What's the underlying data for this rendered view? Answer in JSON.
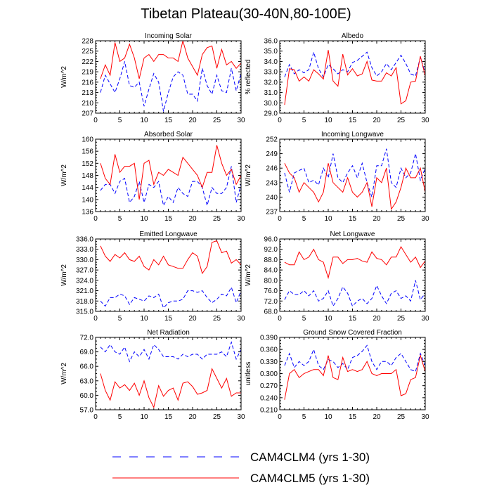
{
  "figure": {
    "title": "Tibetan Plateau(30-40N,80-100E)",
    "legend": [
      {
        "name": "CAM4CLM4 (yrs 1-30)",
        "color": "#0000ff",
        "style": "dashed"
      },
      {
        "name": "CAM4CLM5 (yrs 1-30)",
        "color": "#ff0000",
        "style": "solid"
      }
    ]
  },
  "chart_data": [
    {
      "type": "line",
      "title": "Incoming Solar",
      "ylabel": "W/m^2",
      "xlim": [
        0,
        30
      ],
      "xticks": [
        "0",
        "5",
        "10",
        "15",
        "20",
        "25",
        "30"
      ],
      "ylim": [
        207,
        228
      ],
      "yticks": [
        "207",
        "210",
        "213",
        "216",
        "219",
        "222",
        "225",
        "228"
      ],
      "x": [
        1,
        2,
        3,
        4,
        5,
        6,
        7,
        8,
        9,
        10,
        11,
        12,
        13,
        14,
        15,
        16,
        17,
        18,
        19,
        20,
        21,
        22,
        23,
        24,
        25,
        26,
        27,
        28,
        29,
        30
      ],
      "series": [
        {
          "name": "CAM4CLM4 (yrs 1-30)",
          "values": [
            213,
            218,
            215.5,
            213,
            217,
            222,
            215,
            214.5,
            216,
            209,
            214,
            218.5,
            216,
            207.5,
            213,
            217.5,
            219,
            218,
            212.5,
            212.5,
            210.5,
            220,
            215,
            212.5,
            218,
            213.5,
            213,
            220,
            213.5,
            218.5
          ]
        },
        {
          "name": "CAM4CLM5 (yrs 1-30)",
          "values": [
            217,
            221,
            218,
            227.5,
            222,
            223,
            227,
            223,
            217,
            223,
            224,
            222,
            224,
            224,
            223,
            223,
            222,
            228,
            223,
            220.5,
            218,
            224,
            226,
            226.5,
            220,
            225.5,
            221,
            222,
            220,
            221.5
          ]
        }
      ]
    },
    {
      "type": "line",
      "title": "Albedo",
      "ylabel": "% reflected",
      "xlim": [
        0,
        30
      ],
      "xticks": [
        "0",
        "5",
        "10",
        "15",
        "20",
        "25",
        "30"
      ],
      "ylim": [
        29.0,
        36.0
      ],
      "yticks": [
        "29.0",
        "30.0",
        "31.0",
        "32.0",
        "33.0",
        "34.0",
        "35.0",
        "36.0"
      ],
      "x": [
        1,
        2,
        3,
        4,
        5,
        6,
        7,
        8,
        9,
        10,
        11,
        12,
        13,
        14,
        15,
        16,
        17,
        18,
        19,
        20,
        21,
        22,
        23,
        24,
        25,
        26,
        27,
        28,
        29,
        30
      ],
      "series": [
        {
          "name": "CAM4CLM4 (yrs 1-30)",
          "values": [
            32.5,
            33.7,
            32.8,
            33.2,
            32.9,
            33.2,
            34.9,
            33.3,
            32.5,
            33.7,
            33.3,
            32.8,
            33.2,
            33.0,
            33.9,
            34.1,
            34.5,
            34.9,
            33.4,
            32.6,
            33.0,
            33.8,
            33.2,
            33.9,
            34.6,
            33.8,
            32.8,
            32.6,
            34.4,
            32.9
          ]
        },
        {
          "name": "CAM4CLM5 (yrs 1-30)",
          "values": [
            29.8,
            33.3,
            33.2,
            32.1,
            32.5,
            32.1,
            33.2,
            32.8,
            32.3,
            35.1,
            32.1,
            31.6,
            34.7,
            32.7,
            33.3,
            32.6,
            32.8,
            34.0,
            32.2,
            32.1,
            32.1,
            32.9,
            32.6,
            33.4,
            29.9,
            30.2,
            32.0,
            32.1,
            34.5,
            32.6
          ]
        }
      ]
    },
    {
      "type": "line",
      "title": "Absorbed Solar",
      "ylabel": "W/m^2",
      "xlim": [
        0,
        30
      ],
      "xticks": [
        "0",
        "5",
        "10",
        "15",
        "20",
        "25",
        "30"
      ],
      "ylim": [
        136,
        160
      ],
      "yticks": [
        "136",
        "140",
        "144",
        "148",
        "152",
        "156",
        "160"
      ],
      "x": [
        1,
        2,
        3,
        4,
        5,
        6,
        7,
        8,
        9,
        10,
        11,
        12,
        13,
        14,
        15,
        16,
        17,
        18,
        19,
        20,
        21,
        22,
        23,
        24,
        25,
        26,
        27,
        28,
        29,
        30
      ],
      "series": [
        {
          "name": "CAM4CLM4 (yrs 1-30)",
          "values": [
            143,
            145,
            145,
            142,
            146,
            147,
            139,
            141,
            146,
            139,
            145,
            144,
            146,
            138,
            141,
            139,
            144,
            142,
            141,
            146,
            146,
            144,
            138,
            144,
            142,
            142,
            144,
            151,
            139,
            145
          ]
        },
        {
          "name": "CAM4CLM5 (yrs 1-30)",
          "values": [
            152,
            147,
            145,
            155,
            149,
            151,
            151,
            152,
            140,
            152,
            153,
            145,
            149,
            148,
            150,
            149,
            148,
            154,
            152,
            150,
            148,
            144,
            149,
            149,
            158,
            152,
            148,
            150,
            145,
            148
          ]
        }
      ]
    },
    {
      "type": "line",
      "title": "Incoming Longwave",
      "ylabel": "W/m^2",
      "xlim": [
        0,
        30
      ],
      "xticks": [
        "0",
        "5",
        "10",
        "15",
        "20",
        "25",
        "30"
      ],
      "ylim": [
        237,
        252
      ],
      "yticks": [
        "237",
        "240",
        "243",
        "246",
        "249",
        "252"
      ],
      "x": [
        1,
        2,
        3,
        4,
        5,
        6,
        7,
        8,
        9,
        10,
        11,
        12,
        13,
        14,
        15,
        16,
        17,
        18,
        19,
        20,
        21,
        22,
        23,
        24,
        25,
        26,
        27,
        28,
        29,
        30
      ],
      "series": [
        {
          "name": "CAM4CLM4 (yrs 1-30)",
          "values": [
            245,
            241,
            245,
            245.5,
            246,
            243,
            243.5,
            242.5,
            246,
            244,
            249,
            244,
            243,
            245,
            246.5,
            244,
            247,
            243,
            240,
            246.5,
            246.5,
            250,
            243,
            242,
            246,
            244,
            245,
            249,
            243.5,
            246
          ]
        },
        {
          "name": "CAM4CLM5 (yrs 1-30)",
          "values": [
            247,
            245,
            244,
            241,
            243,
            242,
            241,
            239,
            241,
            247,
            243,
            242,
            241,
            244,
            241,
            240,
            241,
            243,
            238,
            244,
            243,
            246,
            237.5,
            239,
            242,
            246,
            244,
            244,
            246,
            241
          ]
        }
      ]
    },
    {
      "type": "line",
      "title": "Emitted Longwave",
      "ylabel": "W/m^2",
      "xlim": [
        0,
        30
      ],
      "xticks": [
        "0",
        "5",
        "10",
        "15",
        "20",
        "25",
        "30"
      ],
      "ylim": [
        315.0,
        336.0
      ],
      "yticks": [
        "315.0",
        "318.0",
        "321.0",
        "324.0",
        "327.0",
        "330.0",
        "333.0",
        "336.0"
      ],
      "x": [
        1,
        2,
        3,
        4,
        5,
        6,
        7,
        8,
        9,
        10,
        11,
        12,
        13,
        14,
        15,
        16,
        17,
        18,
        19,
        20,
        21,
        22,
        23,
        24,
        25,
        26,
        27,
        28,
        29,
        30
      ],
      "series": [
        {
          "name": "CAM4CLM4 (yrs 1-30)",
          "values": [
            318,
            316.5,
            319,
            319,
            320,
            319.5,
            317,
            319,
            318.5,
            318,
            319.5,
            319,
            320,
            316,
            317.5,
            318,
            318,
            318.5,
            321,
            321,
            320.5,
            321,
            319,
            317.5,
            318.5,
            320,
            319.5,
            322,
            317.5,
            321
          ]
        },
        {
          "name": "CAM4CLM5 (yrs 1-30)",
          "values": [
            334,
            331,
            329.5,
            331.5,
            330.5,
            332,
            330,
            329.5,
            331,
            328,
            327,
            330,
            328.5,
            331,
            328.5,
            328,
            327.5,
            327.5,
            330,
            332,
            331,
            326,
            328,
            335,
            335.5,
            332,
            332.5,
            329,
            330,
            328.5
          ]
        }
      ]
    },
    {
      "type": "line",
      "title": "Net Longwave",
      "ylabel": "W/m^2",
      "xlim": [
        0,
        30
      ],
      "xticks": [
        "0",
        "5",
        "10",
        "15",
        "20",
        "25",
        "30"
      ],
      "ylim": [
        68.0,
        96.0
      ],
      "yticks": [
        "68.0",
        "72.0",
        "76.0",
        "80.0",
        "84.0",
        "88.0",
        "92.0",
        "96.0"
      ],
      "x": [
        1,
        2,
        3,
        4,
        5,
        6,
        7,
        8,
        9,
        10,
        11,
        12,
        13,
        14,
        15,
        16,
        17,
        18,
        19,
        20,
        21,
        22,
        23,
        24,
        25,
        26,
        27,
        28,
        29,
        30
      ],
      "series": [
        {
          "name": "CAM4CLM4 (yrs 1-30)",
          "values": [
            72.5,
            76,
            74.5,
            74.5,
            76,
            74,
            76,
            72,
            73,
            76,
            70,
            73,
            77.5,
            75,
            70,
            72,
            73,
            71,
            73,
            78,
            74,
            71,
            75,
            76,
            73,
            74,
            72,
            80,
            72.5,
            75
          ]
        },
        {
          "name": "CAM4CLM5 (yrs 1-30)",
          "values": [
            87,
            86,
            86,
            91,
            88,
            89,
            92,
            88,
            87,
            81,
            89,
            89,
            86.5,
            88,
            88,
            88.5,
            87.5,
            87,
            91,
            88.5,
            88,
            86,
            89,
            89,
            93,
            90,
            87,
            89,
            85,
            87.5
          ]
        }
      ]
    },
    {
      "type": "line",
      "title": "Net Radiation",
      "ylabel": "W/m^2",
      "xlim": [
        0,
        30
      ],
      "xticks": [
        "0",
        "5",
        "10",
        "15",
        "20",
        "25",
        "30"
      ],
      "ylim": [
        57.0,
        72.0
      ],
      "yticks": [
        "57.0",
        "60.0",
        "63.0",
        "66.0",
        "69.0",
        "72.0"
      ],
      "x": [
        1,
        2,
        3,
        4,
        5,
        6,
        7,
        8,
        9,
        10,
        11,
        12,
        13,
        14,
        15,
        16,
        17,
        18,
        19,
        20,
        21,
        22,
        23,
        24,
        25,
        26,
        27,
        28,
        29,
        30
      ],
      "series": [
        {
          "name": "CAM4CLM4 (yrs 1-30)",
          "values": [
            70,
            69,
            70.5,
            69,
            68.5,
            70,
            67,
            69,
            68,
            69.5,
            67.5,
            70.5,
            69.5,
            68,
            68,
            68,
            67.5,
            68.5,
            68,
            68.5,
            68.5,
            67.5,
            68.5,
            68.5,
            68.5,
            69,
            68,
            71,
            67.5,
            69.5
          ]
        },
        {
          "name": "CAM4CLM5 (yrs 1-30)",
          "values": [
            64.5,
            61,
            59,
            62.8,
            61.5,
            62.2,
            61,
            62.5,
            60,
            63,
            59.5,
            57.5,
            62,
            59.8,
            61,
            61.5,
            59,
            62.5,
            62.8,
            61.8,
            60.2,
            60.5,
            61,
            65.5,
            63.5,
            61.5,
            63.5,
            59.8,
            60.5,
            60.5
          ]
        }
      ]
    },
    {
      "type": "line",
      "title": "Ground Snow Covered Fraction",
      "ylabel": "unitless",
      "xlim": [
        0,
        30
      ],
      "xticks": [
        "0",
        "5",
        "10",
        "15",
        "20",
        "25",
        "30"
      ],
      "ylim": [
        0.21,
        0.39
      ],
      "yticks": [
        "0.210",
        "0.240",
        "0.270",
        "0.300",
        "0.330",
        "0.360",
        "0.390"
      ],
      "x": [
        1,
        2,
        3,
        4,
        5,
        6,
        7,
        8,
        9,
        10,
        11,
        12,
        13,
        14,
        15,
        16,
        17,
        18,
        19,
        20,
        21,
        22,
        23,
        24,
        25,
        26,
        27,
        28,
        29,
        30
      ],
      "series": [
        {
          "name": "CAM4CLM4 (yrs 1-30)",
          "values": [
            0.32,
            0.35,
            0.315,
            0.33,
            0.32,
            0.33,
            0.36,
            0.32,
            0.31,
            0.335,
            0.33,
            0.315,
            0.325,
            0.31,
            0.34,
            0.345,
            0.355,
            0.37,
            0.33,
            0.31,
            0.33,
            0.33,
            0.32,
            0.34,
            0.35,
            0.33,
            0.31,
            0.305,
            0.35,
            0.32
          ]
        },
        {
          "name": "CAM4CLM5 (yrs 1-30)",
          "values": [
            0.235,
            0.3,
            0.31,
            0.29,
            0.3,
            0.305,
            0.31,
            0.31,
            0.295,
            0.345,
            0.29,
            0.285,
            0.34,
            0.305,
            0.31,
            0.305,
            0.31,
            0.33,
            0.3,
            0.295,
            0.3,
            0.3,
            0.3,
            0.31,
            0.245,
            0.25,
            0.285,
            0.29,
            0.345,
            0.305
          ]
        }
      ]
    }
  ]
}
